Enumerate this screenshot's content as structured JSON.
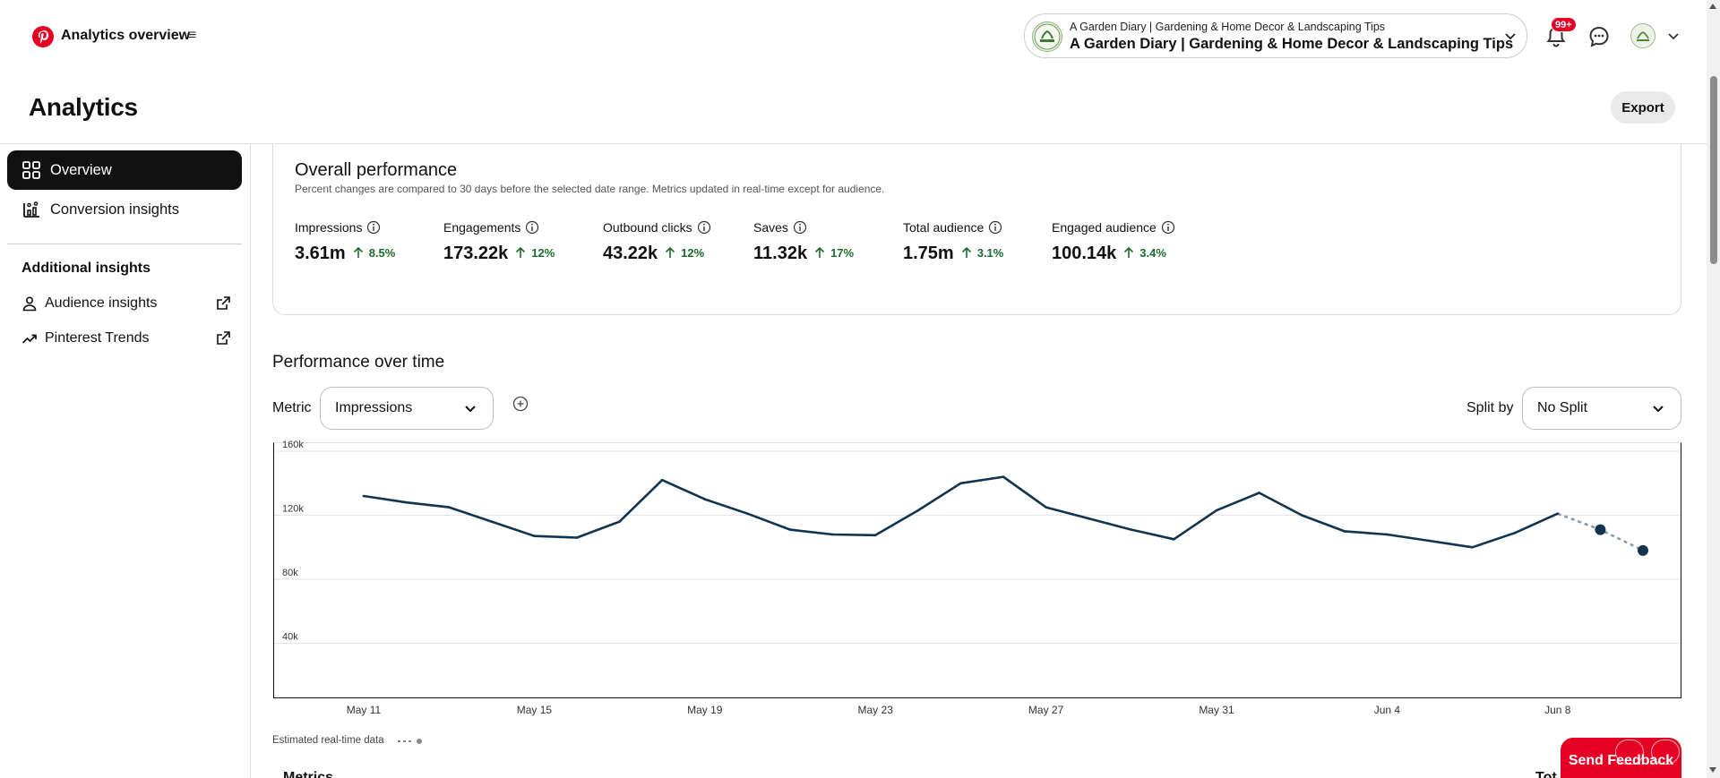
{
  "header": {
    "page_name": "Analytics overview",
    "account_small": "A Garden Diary | Gardening & Home Decor & Landscaping Tips",
    "account_name": "A Garden Diary | Gardening & Home Decor & Landscaping Tips",
    "notifications_badge": "99+"
  },
  "page": {
    "title": "Analytics",
    "export_label": "Export"
  },
  "sidebar": {
    "items": [
      {
        "label": "Overview",
        "icon": "overview-icon",
        "active": true
      },
      {
        "label": "Conversion insights",
        "icon": "conversion-icon",
        "active": false
      }
    ],
    "additional_heading": "Additional insights",
    "links": [
      {
        "label": "Audience insights",
        "icon": "person-icon"
      },
      {
        "label": "Pinterest Trends",
        "icon": "trend-icon"
      }
    ]
  },
  "overall": {
    "title": "Overall performance",
    "subtitle": "Percent changes are compared to 30 days before the selected date range. Metrics updated in real-time except for audience.",
    "metrics": [
      {
        "label": "Impressions",
        "value": "3.61m",
        "change": "8.5%"
      },
      {
        "label": "Engagements",
        "value": "173.22k",
        "change": "12%"
      },
      {
        "label": "Outbound clicks",
        "value": "43.22k",
        "change": "12%"
      },
      {
        "label": "Saves",
        "value": "11.32k",
        "change": "17%"
      },
      {
        "label": "Total audience",
        "value": "1.75m",
        "change": "3.1%"
      },
      {
        "label": "Engaged audience",
        "value": "100.14k",
        "change": "3.4%"
      }
    ]
  },
  "performance": {
    "title": "Performance over time",
    "metric_label": "Metric",
    "metric_value": "Impressions",
    "split_label": "Split by",
    "split_value": "No Split",
    "estimated_label": "Estimated real-time data",
    "metrics_col": "Metrics",
    "total_col": "Tot"
  },
  "feedback_label": "Send Feedback",
  "colors": {
    "brand": "#e60023",
    "line": "#12344f",
    "positive": "#1a6b2e"
  },
  "chart_data": {
    "type": "line",
    "series": [
      {
        "values": [
          132000,
          128000,
          125000,
          116000,
          107000,
          106000,
          116000,
          142000,
          130000,
          121000,
          111000,
          108000,
          107500,
          123000,
          140000,
          144000,
          125000,
          118000,
          111000,
          105000,
          123000,
          134000,
          120000,
          110000,
          108000,
          104000,
          100000,
          109000,
          121000,
          111000,
          98000
        ]
      }
    ],
    "x_tick_labels": [
      "May 11",
      "May 15",
      "May 19",
      "May 23",
      "May 27",
      "May 31",
      "Jun 4",
      "Jun 8"
    ],
    "x_tick_index": [
      0,
      4,
      8,
      12,
      16,
      20,
      24,
      28
    ],
    "y_ticks": [
      "160k",
      "120k",
      "80k",
      "40k"
    ],
    "y_tick_values": [
      160000,
      120000,
      80000,
      40000
    ],
    "ylim": [
      0,
      160000
    ],
    "estimated_from_index": 28,
    "grid": true
  }
}
